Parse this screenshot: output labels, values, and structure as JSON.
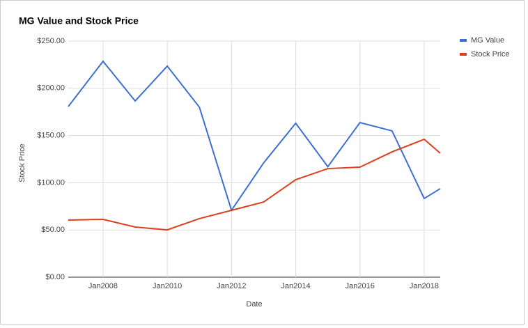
{
  "chart_data": {
    "type": "line",
    "title": "MG Value and Stock Price",
    "x_label": "Date",
    "y_label": "Stock Price",
    "x": [
      "Dec2006",
      "Jan2008",
      "Jan2009",
      "Jan2010",
      "Jan2011",
      "Jan2012",
      "Jan2013",
      "Jan2014",
      "Jan2015",
      "Jan2016",
      "Jan2017",
      "Jan2018",
      "Jul2018"
    ],
    "xlim": [
      "Dec2006",
      "Jul2018"
    ],
    "xticks": [
      "Jan2008",
      "Jan2010",
      "Jan2012",
      "Jan2014",
      "Jan2016",
      "Jan2018"
    ],
    "series": [
      {
        "name": "MG Value",
        "color": "#3c6fd1",
        "values": [
          180.7,
          228.6,
          186.6,
          223.5,
          180,
          70.8,
          121,
          163,
          117,
          163.7,
          154.9,
          83.3,
          93.7
        ]
      },
      {
        "name": "Stock Price",
        "color": "#dc3f1c",
        "values": [
          60.5,
          61.2,
          53.1,
          50.1,
          62,
          70.8,
          79.6,
          103.2,
          115,
          116.5,
          132.7,
          146,
          131.3
        ]
      }
    ],
    "ylim": [
      0,
      250
    ],
    "yticks": [
      {
        "value": 0,
        "label": "$0.00"
      },
      {
        "value": 50,
        "label": "$50.00"
      },
      {
        "value": 100,
        "label": "$100.00"
      },
      {
        "value": 150,
        "label": "$150.00"
      },
      {
        "value": 200,
        "label": "$200.00"
      },
      {
        "value": 250,
        "label": "$250.00"
      }
    ],
    "grid": true,
    "legend": "right"
  }
}
